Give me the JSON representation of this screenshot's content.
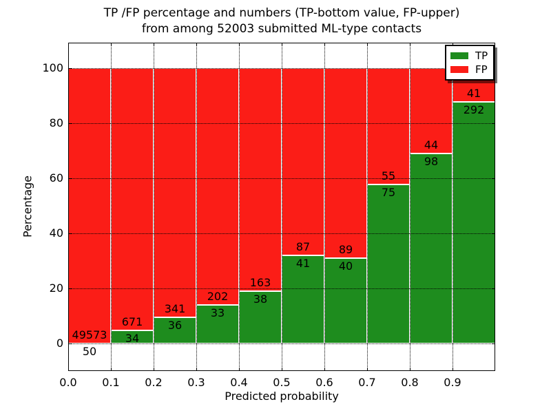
{
  "figure": {
    "title_line1": "TP /FP percentage and numbers (TP-bottom value, FP-upper)",
    "title_line2": "from among 52003 submitted ML-type contacts"
  },
  "chart_data": {
    "type": "bar",
    "subtype": "stacked-percentage-histogram",
    "title": "TP /FP percentage and numbers (TP-bottom value, FP-upper) from among 52003 submitted ML-type contacts",
    "xlabel": "Predicted probability",
    "ylabel": "Percentage",
    "total_contacts": 52003,
    "bin_width": 0.1,
    "x_bins": [
      "0.0-0.1",
      "0.1-0.2",
      "0.2-0.3",
      "0.3-0.4",
      "0.4-0.5",
      "0.5-0.6",
      "0.6-0.7",
      "0.7-0.8",
      "0.8-0.9",
      "0.9-1.0"
    ],
    "x_tick_labels": [
      "0.0",
      "0.1",
      "0.2",
      "0.3",
      "0.4",
      "0.5",
      "0.6",
      "0.7",
      "0.8",
      "0.9"
    ],
    "y_ticks": [
      0,
      20,
      40,
      60,
      80,
      100
    ],
    "y_tick_labels": [
      "0",
      "20",
      "40",
      "60",
      "80",
      "100"
    ],
    "xlim": [
      0.0,
      1.0
    ],
    "ylim": [
      -10,
      109.25
    ],
    "grid": "dotted-black-both-axes",
    "bar_edge_color": "#ffffff",
    "series": [
      {
        "name": "TP",
        "color": "#1e8c1e",
        "counts": [
          50,
          34,
          36,
          33,
          38,
          41,
          40,
          75,
          98,
          292
        ],
        "pct": [
          0.1,
          4.82,
          9.55,
          14.04,
          18.91,
          32.03,
          31.01,
          57.69,
          69.01,
          87.69
        ]
      },
      {
        "name": "FP",
        "color": "#fb1d17",
        "counts": [
          49573,
          671,
          341,
          202,
          163,
          87,
          89,
          55,
          44,
          41
        ],
        "pct": [
          99.9,
          95.18,
          90.45,
          85.96,
          81.09,
          67.97,
          68.99,
          42.31,
          30.99,
          12.31
        ]
      }
    ],
    "legend": {
      "position": "upper-right",
      "items": [
        {
          "label": "TP",
          "color": "#1e8c1e"
        },
        {
          "label": "FP",
          "color": "#fb1d17"
        }
      ]
    }
  }
}
